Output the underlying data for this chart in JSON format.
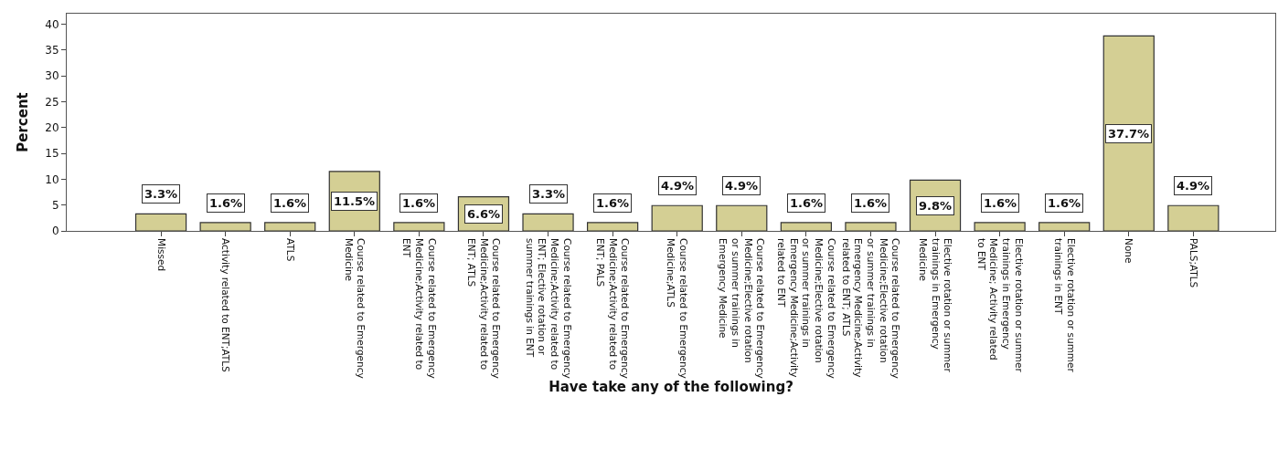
{
  "chart_data": {
    "type": "bar",
    "xlabel": "Have take any of the following?",
    "ylabel": "Percent",
    "categories": [
      "Missed",
      "Activity related to ENT;ATLS",
      "ATLS",
      "Course related to Emergency Medicine",
      "Course related to Emergency Medicine;Activity related to ENT",
      "Course related to Emergency Medicine;Activity related to ENT; ATLS",
      "Course related to Emergency Medicine;Activity related to ENT; Elective rotation or summer trainings in ENT",
      "Course related to Emergency Medicine;Activity related to ENT; PALS",
      "Course related to Emergency Medicine;ATLS",
      "Course related to Emergency Medicine;Elective rotation or summer trainings in Emergency Medicine",
      "Course related to Emergency Medicine;Elective rotation or summer trainings in Emergency Medicine;Activity related to ENT",
      "Course related to Emergency Medicine;Elective rotation or summer trainings in Emergency Medicine;Activity related to ENT; ATLS",
      "Elective rotation or summer trainings in Emergency Medicine",
      "Elective rotation or summer trainings in Emergency Medicine; Activity related to ENT",
      "Elective rotation or summer trainings in ENT",
      "None",
      "PALS;ATLS"
    ],
    "values": [
      3.3,
      1.6,
      1.6,
      11.5,
      1.6,
      6.6,
      3.3,
      1.6,
      4.9,
      4.9,
      1.6,
      1.6,
      9.8,
      1.6,
      1.6,
      37.7,
      4.9
    ],
    "value_labels": [
      "3.3%",
      "1.6%",
      "1.6%",
      "11.5%",
      "1.6%",
      "6.6%",
      "3.3%",
      "1.6%",
      "4.9%",
      "4.9%",
      "1.6%",
      "1.6%",
      "9.8%",
      "1.6%",
      "1.6%",
      "37.7%",
      "4.9%"
    ],
    "color": "#d4cf94",
    "ylim": [
      0,
      42
    ],
    "yticks": [
      0,
      5,
      10,
      15,
      20,
      25,
      30,
      35,
      40
    ]
  }
}
